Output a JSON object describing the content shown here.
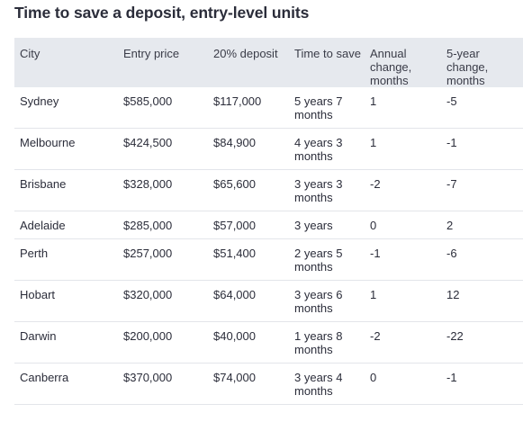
{
  "title": "Time to save a deposit, entry-level units",
  "headers": [
    "City",
    "Entry price",
    "20% deposit",
    "Time to save",
    "Annual change, months",
    "5-year change, months"
  ],
  "rows": [
    [
      "Sydney",
      "$585,000",
      "$117,000",
      "5 years 7 months",
      "1",
      "-5"
    ],
    [
      "Melbourne",
      "$424,500",
      "$84,900",
      "4 years 3 months",
      "1",
      "-1"
    ],
    [
      "Brisbane",
      "$328,000",
      "$65,600",
      "3 years 3 months",
      "-2",
      "-7"
    ],
    [
      "Adelaide",
      "$285,000",
      "$57,000",
      "3 years",
      "0",
      "2"
    ],
    [
      "Perth",
      "$257,000",
      "$51,400",
      "2 years 5 months",
      "-1",
      "-6"
    ],
    [
      "Hobart",
      "$320,000",
      "$64,000",
      "3 years 6 months",
      "1",
      "12"
    ],
    [
      "Darwin",
      "$200,000",
      "$40,000",
      "1 years 8 months",
      "-2",
      "-22"
    ],
    [
      "Canberra",
      "$370,000",
      "$74,000",
      "3 years 4 months",
      "0",
      "-1"
    ]
  ],
  "colors": {
    "header_background": "#e6e9ee",
    "text": "#2b2d3a",
    "row_divider": "#e3e5ea"
  }
}
